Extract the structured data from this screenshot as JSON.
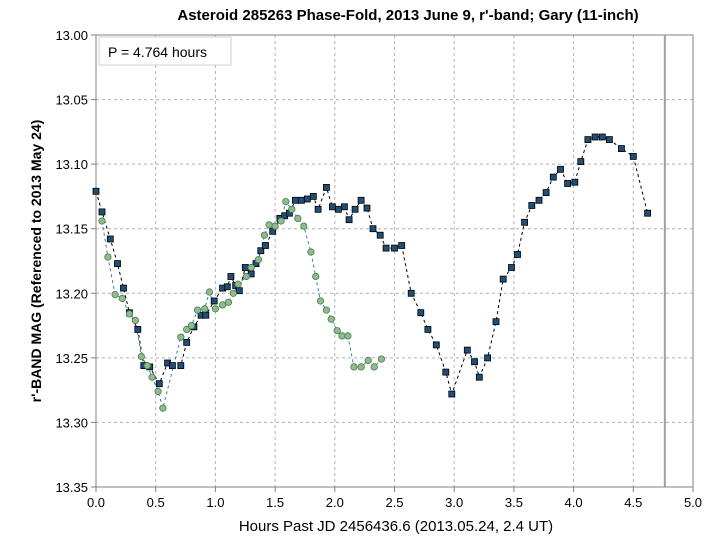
{
  "chart_data": {
    "type": "scatter",
    "title": "Asteroid  285263  Phase-Fold,  2013  June  9,  r'-band;  Gary  (11-inch)",
    "xlabel": "Hours  Past  JD  2456436.6   (2013.05.24,  2.4 UT)",
    "ylabel": "r'-BAND MAG  (Referenced to 2013 May 24)",
    "annotation": "P = 4.764 hours",
    "xlim": [
      0,
      5
    ],
    "ylim": [
      13.35,
      13.0
    ],
    "y_inverted": true,
    "grid": true,
    "x_ticks": [
      "0.0",
      "0.5",
      "1.0",
      "1.5",
      "2.0",
      "2.5",
      "3.0",
      "3.5",
      "4.0",
      "4.5",
      "5.0"
    ],
    "y_ticks": [
      "13.00",
      "13.05",
      "13.10",
      "13.15",
      "13.20",
      "13.25",
      "13.30",
      "13.35"
    ],
    "period_line_x": 4.764,
    "colors": {
      "series_a_fill": "#1f4e79",
      "series_b_fill": "#8fbc8f",
      "grid": "#b0b0b0",
      "period_line": "#a0a0a0"
    },
    "series": [
      {
        "marker": "square",
        "points": [
          [
            0.0,
            13.121
          ],
          [
            0.05,
            13.137
          ],
          [
            0.12,
            13.158
          ],
          [
            0.18,
            13.177
          ],
          [
            0.23,
            13.196
          ],
          [
            0.28,
            13.215
          ],
          [
            0.35,
            13.228
          ],
          [
            0.4,
            13.256
          ],
          [
            0.45,
            13.257
          ],
          [
            0.53,
            13.27
          ],
          [
            0.6,
            13.254
          ],
          [
            0.64,
            13.256
          ],
          [
            0.71,
            13.256
          ],
          [
            0.76,
            13.238
          ],
          [
            0.82,
            13.226
          ],
          [
            0.88,
            13.217
          ],
          [
            0.92,
            13.217
          ],
          [
            0.99,
            13.206
          ],
          [
            1.06,
            13.196
          ],
          [
            1.1,
            13.195
          ],
          [
            1.13,
            13.187
          ],
          [
            1.17,
            13.194
          ],
          [
            1.2,
            13.198
          ],
          [
            1.25,
            13.18
          ],
          [
            1.3,
            13.185
          ],
          [
            1.34,
            13.177
          ],
          [
            1.38,
            13.167
          ],
          [
            1.42,
            13.163
          ],
          [
            1.48,
            13.152
          ],
          [
            1.54,
            13.142
          ],
          [
            1.58,
            13.14
          ],
          [
            1.62,
            13.138
          ],
          [
            1.67,
            13.128
          ],
          [
            1.72,
            13.128
          ],
          [
            1.77,
            13.127
          ],
          [
            1.82,
            13.125
          ],
          [
            1.86,
            13.135
          ],
          [
            1.93,
            13.118
          ],
          [
            1.98,
            13.133
          ],
          [
            2.03,
            13.135
          ],
          [
            2.08,
            13.133
          ],
          [
            2.12,
            13.143
          ],
          [
            2.17,
            13.135
          ],
          [
            2.22,
            13.128
          ],
          [
            2.27,
            13.134
          ],
          [
            2.32,
            13.15
          ],
          [
            2.38,
            13.155
          ],
          [
            2.43,
            13.165
          ],
          [
            2.5,
            13.165
          ],
          [
            2.56,
            13.163
          ],
          [
            2.64,
            13.2
          ],
          [
            2.72,
            13.215
          ],
          [
            2.78,
            13.228
          ],
          [
            2.85,
            13.24
          ],
          [
            2.93,
            13.261
          ],
          [
            2.98,
            13.278
          ],
          [
            3.11,
            13.244
          ],
          [
            3.17,
            13.253
          ],
          [
            3.21,
            13.265
          ],
          [
            3.28,
            13.25
          ],
          [
            3.35,
            13.222
          ],
          [
            3.41,
            13.189
          ],
          [
            3.48,
            13.18
          ],
          [
            3.53,
            13.17
          ],
          [
            3.59,
            13.145
          ],
          [
            3.65,
            13.132
          ],
          [
            3.71,
            13.128
          ],
          [
            3.77,
            13.122
          ],
          [
            3.83,
            13.11
          ],
          [
            3.89,
            13.104
          ],
          [
            3.95,
            13.115
          ],
          [
            4.01,
            13.114
          ],
          [
            4.06,
            13.098
          ],
          [
            4.12,
            13.081
          ],
          [
            4.18,
            13.079
          ],
          [
            4.24,
            13.079
          ],
          [
            4.3,
            13.081
          ],
          [
            4.4,
            13.088
          ],
          [
            4.5,
            13.094
          ],
          [
            4.62,
            13.138
          ]
        ]
      },
      {
        "marker": "circle",
        "points": [
          [
            0.05,
            13.144
          ],
          [
            0.1,
            13.172
          ],
          [
            0.16,
            13.201
          ],
          [
            0.22,
            13.204
          ],
          [
            0.28,
            13.216
          ],
          [
            0.33,
            13.221
          ],
          [
            0.38,
            13.249
          ],
          [
            0.43,
            13.256
          ],
          [
            0.47,
            13.265
          ],
          [
            0.52,
            13.276
          ],
          [
            0.56,
            13.289
          ],
          [
            0.71,
            13.234
          ],
          [
            0.76,
            13.228
          ],
          [
            0.8,
            13.225
          ],
          [
            0.85,
            13.213
          ],
          [
            0.91,
            13.212
          ],
          [
            0.95,
            13.199
          ],
          [
            1.0,
            13.212
          ],
          [
            1.06,
            13.209
          ],
          [
            1.11,
            13.207
          ],
          [
            1.15,
            13.2
          ],
          [
            1.19,
            13.193
          ],
          [
            1.26,
            13.187
          ],
          [
            1.3,
            13.18
          ],
          [
            1.36,
            13.174
          ],
          [
            1.41,
            13.155
          ],
          [
            1.45,
            13.147
          ],
          [
            1.5,
            13.148
          ],
          [
            1.55,
            13.144
          ],
          [
            1.59,
            13.129
          ],
          [
            1.64,
            13.135
          ],
          [
            1.69,
            13.142
          ],
          [
            1.74,
            13.148
          ],
          [
            1.8,
            13.168
          ],
          [
            1.84,
            13.187
          ],
          [
            1.88,
            13.206
          ],
          [
            1.93,
            13.213
          ],
          [
            1.97,
            13.22
          ],
          [
            2.02,
            13.229
          ],
          [
            2.06,
            13.233
          ],
          [
            2.11,
            13.233
          ],
          [
            2.16,
            13.257
          ],
          [
            2.22,
            13.257
          ],
          [
            2.28,
            13.252
          ],
          [
            2.33,
            13.257
          ],
          [
            2.39,
            13.251
          ]
        ]
      }
    ]
  }
}
